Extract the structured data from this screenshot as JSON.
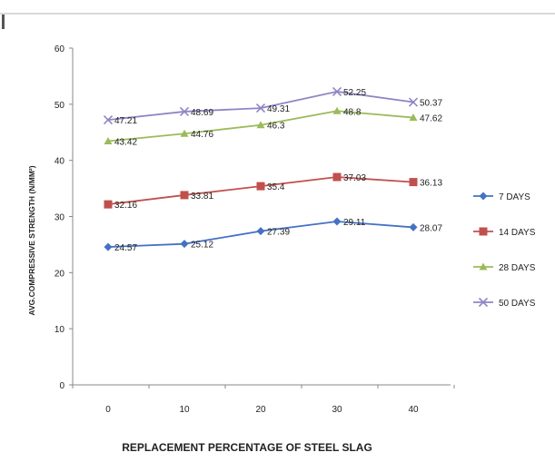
{
  "chart_data": {
    "type": "line",
    "xlabel": "REPLACEMENT PERCENTAGE OF STEEL SLAG",
    "ylabel": "AVG.COMPRESSIVE STRENGTH (N/MM²)",
    "x": [
      0,
      10,
      20,
      30,
      40
    ],
    "ylim": [
      0,
      60
    ],
    "yticks": [
      0,
      10,
      20,
      30,
      40,
      50,
      60
    ],
    "grid": false,
    "legend_position": "right",
    "series": [
      {
        "name": "7 DAYS",
        "color": "#4472c4",
        "marker": "diamond",
        "values": [
          24.57,
          25.12,
          27.39,
          29.11,
          28.07
        ],
        "labels": [
          "24.57",
          "25.12",
          "27.39",
          "29.11",
          "28.07"
        ]
      },
      {
        "name": "14 DAYS",
        "color": "#c0504d",
        "marker": "square",
        "values": [
          32.16,
          33.81,
          35.4,
          37.03,
          36.13
        ],
        "labels": [
          "32.16",
          "33.81",
          "35.4",
          "37.03",
          "36.13"
        ]
      },
      {
        "name": "28 DAYS",
        "color": "#9bbb59",
        "marker": "triangle",
        "values": [
          43.42,
          44.76,
          46.3,
          48.8,
          47.62
        ],
        "labels": [
          "43.42",
          "44.76",
          "46.3",
          "48.8",
          "47.62"
        ]
      },
      {
        "name": "50 DAYS",
        "color": "#8e86c4",
        "marker": "cross",
        "values": [
          47.21,
          48.69,
          49.31,
          52.25,
          50.37
        ],
        "labels": [
          "47.21",
          "48.69",
          "49.31",
          "52.25",
          "50.37"
        ]
      }
    ]
  }
}
